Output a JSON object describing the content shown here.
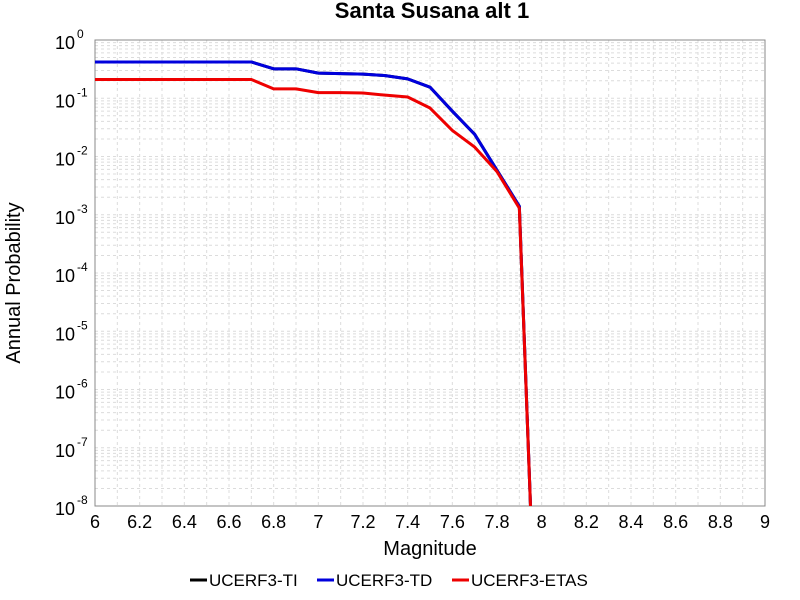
{
  "chart_data": {
    "type": "line",
    "title": "Santa Susana alt 1",
    "xlabel": "Magnitude",
    "ylabel": "Annual Probability",
    "xlim": [
      6,
      9
    ],
    "ylim": [
      1e-08,
      1
    ],
    "yscale": "log",
    "grid": true,
    "legend": "bottom-center",
    "xticks": [
      "6",
      "6.2",
      "6.4",
      "6.6",
      "6.8",
      "7",
      "7.2",
      "7.4",
      "7.6",
      "7.8",
      "8",
      "8.2",
      "8.4",
      "8.6",
      "8.8",
      "9"
    ],
    "yticks": [
      {
        "base": "10",
        "exp": "0"
      },
      {
        "base": "10",
        "exp": "-1"
      },
      {
        "base": "10",
        "exp": "-2"
      },
      {
        "base": "10",
        "exp": "-3"
      },
      {
        "base": "10",
        "exp": "-4"
      },
      {
        "base": "10",
        "exp": "-5"
      },
      {
        "base": "10",
        "exp": "-6"
      },
      {
        "base": "10",
        "exp": "-7"
      },
      {
        "base": "10",
        "exp": "-8"
      }
    ],
    "series": [
      {
        "name": "UCERF3-TI",
        "color": "#000000",
        "x": [
          6.0,
          6.7,
          6.8,
          6.9,
          7.0,
          7.1,
          7.2,
          7.3,
          7.4,
          7.5,
          7.6,
          7.7,
          7.8,
          7.9,
          7.95
        ],
        "y": [
          0.42,
          0.42,
          0.32,
          0.32,
          0.27,
          0.265,
          0.26,
          0.245,
          0.215,
          0.155,
          0.06,
          0.024,
          0.0058,
          0.0014,
          1e-08
        ]
      },
      {
        "name": "UCERF3-TD",
        "color": "#0000dd",
        "x": [
          6.0,
          6.7,
          6.8,
          6.9,
          7.0,
          7.1,
          7.2,
          7.3,
          7.4,
          7.5,
          7.6,
          7.7,
          7.8,
          7.9,
          7.95
        ],
        "y": [
          0.42,
          0.42,
          0.32,
          0.32,
          0.27,
          0.265,
          0.26,
          0.245,
          0.215,
          0.155,
          0.06,
          0.024,
          0.0058,
          0.0014,
          1e-08
        ]
      },
      {
        "name": "UCERF3-ETAS",
        "color": "#ee0000",
        "x": [
          6.0,
          6.7,
          6.8,
          6.9,
          7.0,
          7.1,
          7.2,
          7.3,
          7.4,
          7.5,
          7.6,
          7.7,
          7.8,
          7.9,
          7.95
        ],
        "y": [
          0.21,
          0.21,
          0.145,
          0.145,
          0.125,
          0.125,
          0.123,
          0.113,
          0.105,
          0.068,
          0.028,
          0.0145,
          0.0055,
          0.0013,
          1e-08
        ]
      }
    ]
  }
}
